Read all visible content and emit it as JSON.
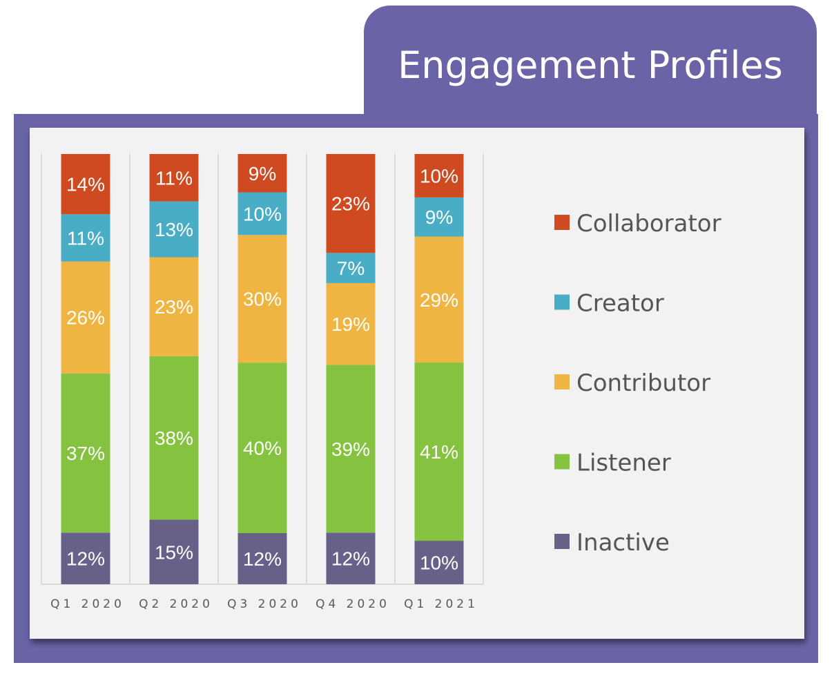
{
  "chart_data": {
    "type": "bar",
    "stacked": true,
    "title": "Engagement Profiles",
    "categories": [
      "Q1 2020",
      "Q2 2020",
      "Q3 2020",
      "Q4 2020",
      "Q1 2021"
    ],
    "series": [
      {
        "name": "Inactive",
        "color": "#676189",
        "values": [
          12,
          15,
          12,
          12,
          10
        ],
        "labels": [
          "12%",
          "15%",
          "12%",
          "12%",
          "10%"
        ]
      },
      {
        "name": "Listener",
        "color": "#84c240",
        "values": [
          37,
          38,
          40,
          39,
          41
        ],
        "labels": [
          "37%",
          "38%",
          "40%",
          "39%",
          "41%"
        ]
      },
      {
        "name": "Contributor",
        "color": "#efb543",
        "values": [
          26,
          23,
          30,
          19,
          29
        ],
        "labels": [
          "26%",
          "23%",
          "30%",
          "19%",
          "29%"
        ]
      },
      {
        "name": "Creator",
        "color": "#4aadc6",
        "values": [
          11,
          13,
          10,
          7,
          9
        ],
        "labels": [
          "11%",
          "13%",
          "10%",
          "7%",
          "9%"
        ]
      },
      {
        "name": "Collaborator",
        "color": "#d04a21",
        "values": [
          14,
          11,
          9,
          23,
          10
        ],
        "labels": [
          "14%",
          "11%",
          "9%",
          "23%",
          "10%"
        ]
      }
    ],
    "legend_order": [
      "Collaborator",
      "Creator",
      "Contributor",
      "Listener",
      "Inactive"
    ],
    "legend_position": "right",
    "grid": "vertical category separators",
    "frame_color": "#6a63a6"
  }
}
